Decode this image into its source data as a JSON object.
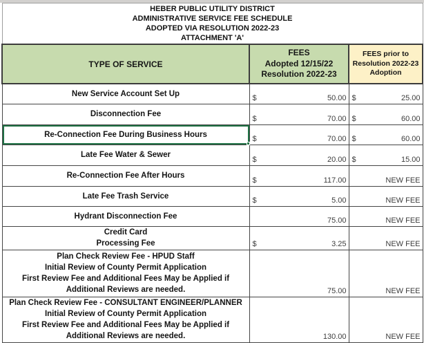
{
  "title_block": {
    "lines": [
      "HEBER PUBLIC UTILITY DISTRICT",
      "ADMINISTRATIVE SERVICE FEE SCHEDULE",
      "ADOPTED VIA RESOLUTION 2022-23",
      "ATTACHMENT 'A'"
    ]
  },
  "header": {
    "service": "TYPE OF SERVICE",
    "fees_adopted": [
      "FEES",
      "Adopted 12/15/22",
      "Resolution 2022-23"
    ],
    "fees_prior": [
      "FEES prior to",
      "Resolution 2022-23",
      "Adoption"
    ]
  },
  "rows": [
    {
      "service": [
        "New Service Account Set Up"
      ],
      "adopted_currency": "$",
      "adopted_amount": "50.00",
      "prior_currency": "$",
      "prior_amount": "25.00",
      "selected": false
    },
    {
      "service": [
        "Disconnection Fee"
      ],
      "adopted_currency": "$",
      "adopted_amount": "70.00",
      "prior_currency": "$",
      "prior_amount": "60.00",
      "selected": false
    },
    {
      "service": [
        "Re-Connection Fee During Business Hours"
      ],
      "adopted_currency": "$",
      "adopted_amount": "70.00",
      "prior_currency": "$",
      "prior_amount": "60.00",
      "selected": true
    },
    {
      "service": [
        "Late Fee Water & Sewer"
      ],
      "adopted_currency": "$",
      "adopted_amount": "20.00",
      "prior_currency": "$",
      "prior_amount": "15.00",
      "selected": false
    },
    {
      "service": [
        "Re-Connection Fee After Hours"
      ],
      "adopted_currency": "$",
      "adopted_amount": "117.00",
      "prior_currency": "",
      "prior_amount": "NEW FEE",
      "selected": false
    },
    {
      "service": [
        "Late Fee Trash Service"
      ],
      "adopted_currency": "$",
      "adopted_amount": "5.00",
      "prior_currency": "",
      "prior_amount": "NEW FEE",
      "selected": false
    },
    {
      "service": [
        "Hydrant Disconnection Fee"
      ],
      "adopted_currency": "",
      "adopted_amount": "75.00",
      "prior_currency": "",
      "prior_amount": "NEW FEE",
      "selected": false
    },
    {
      "service": [
        "Credit Card",
        "Processing Fee"
      ],
      "adopted_currency": "$",
      "adopted_amount": "3.25",
      "prior_currency": "",
      "prior_amount": "NEW FEE",
      "selected": false
    },
    {
      "service": [
        "Plan Check Review Fee - HPUD Staff",
        "Initial Review of County Permit Application",
        "First Review Fee and Additional Fees May be Applied if",
        "Additional Reviews are needed."
      ],
      "adopted_currency": "",
      "adopted_amount": "75.00",
      "prior_currency": "",
      "prior_amount": "NEW FEE",
      "selected": false
    },
    {
      "service": [
        "Plan Check Review Fee - CONSULTANT ENGINEER/PLANNER",
        "Initial Review of County Permit Application",
        "First Review Fee and Additional Fees May be Applied if",
        "Additional Reviews are needed."
      ],
      "adopted_currency": "",
      "adopted_amount": "130.00",
      "prior_currency": "",
      "prior_amount": "NEW FEE",
      "selected": false
    }
  ],
  "colors": {
    "header_green": "#c7dbae",
    "header_tan": "#fdf1c7",
    "selection_border": "#1f7245",
    "grid_border": "#454545"
  }
}
